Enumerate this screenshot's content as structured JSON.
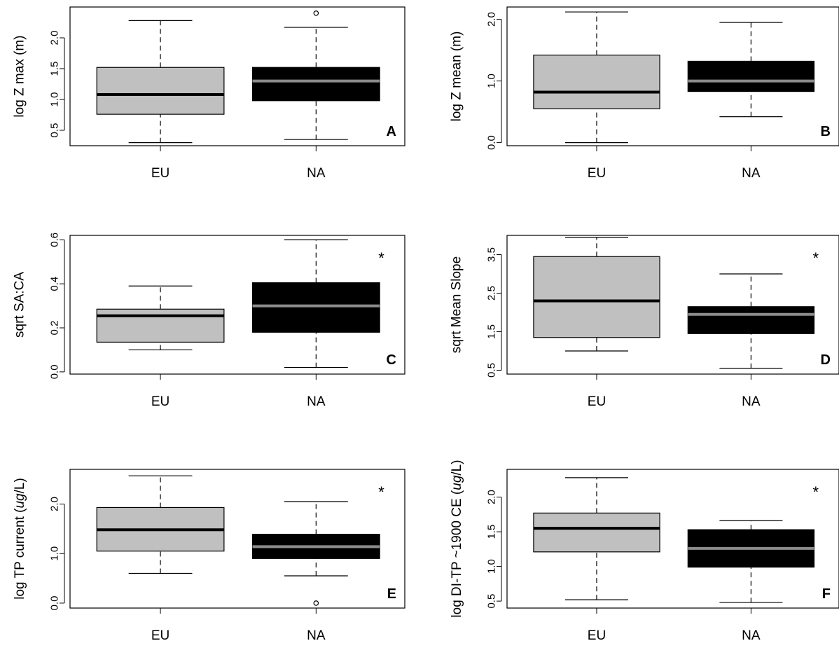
{
  "chart_data": [
    {
      "type": "box",
      "panel": "A",
      "ylabel": "log Z max (m)",
      "ylim": [
        0.25,
        2.5
      ],
      "yticks": [
        "0.5",
        "1.0",
        "1.5",
        "2.0"
      ],
      "categories": [
        "EU",
        "NA"
      ],
      "significance": "",
      "boxes": [
        {
          "min": 0.3,
          "q1": 0.76,
          "median": 1.08,
          "q3": 1.52,
          "max": 2.28,
          "outliers": []
        },
        {
          "min": 0.35,
          "q1": 0.98,
          "median": 1.3,
          "q3": 1.52,
          "max": 2.17,
          "outliers": [
            2.4
          ]
        }
      ]
    },
    {
      "type": "box",
      "panel": "B",
      "ylabel": "log Z mean (m)",
      "ylim": [
        -0.05,
        2.2
      ],
      "yticks": [
        "0.0",
        "1.0",
        "2.0"
      ],
      "categories": [
        "EU",
        "NA"
      ],
      "significance": "",
      "boxes": [
        {
          "min": 0.0,
          "q1": 0.55,
          "median": 0.82,
          "q3": 1.42,
          "max": 2.12,
          "outliers": []
        },
        {
          "min": 0.42,
          "q1": 0.83,
          "median": 1.0,
          "q3": 1.32,
          "max": 1.95,
          "outliers": []
        }
      ]
    },
    {
      "type": "box",
      "panel": "C",
      "ylabel": "sqrt SA:CA",
      "ylim": [
        -0.01,
        0.62
      ],
      "yticks": [
        "0.0",
        "0.2",
        "0.4",
        "0.6"
      ],
      "categories": [
        "EU",
        "NA"
      ],
      "significance": "*",
      "boxes": [
        {
          "min": 0.1,
          "q1": 0.135,
          "median": 0.255,
          "q3": 0.285,
          "max": 0.39,
          "outliers": []
        },
        {
          "min": 0.02,
          "q1": 0.18,
          "median": 0.3,
          "q3": 0.405,
          "max": 0.6,
          "outliers": []
        }
      ]
    },
    {
      "type": "box",
      "panel": "D",
      "ylabel": "sqrt Mean Slope",
      "ylim": [
        0.4,
        4.0
      ],
      "yticks": [
        "0.5",
        "1.5",
        "2.5",
        "3.5"
      ],
      "categories": [
        "EU",
        "NA"
      ],
      "significance": "*",
      "boxes": [
        {
          "min": 1.0,
          "q1": 1.35,
          "median": 2.3,
          "q3": 3.45,
          "max": 3.95,
          "outliers": []
        },
        {
          "min": 0.55,
          "q1": 1.45,
          "median": 1.95,
          "q3": 2.15,
          "max": 3.0,
          "outliers": []
        }
      ]
    },
    {
      "type": "box",
      "panel": "E",
      "ylabel": "log TP current (ug/L)",
      "ylabel_parts": [
        "log TP current (",
        "ug",
        "/L)"
      ],
      "ylim": [
        -0.1,
        2.7
      ],
      "yticks": [
        "0.0",
        "1.0",
        "2.0"
      ],
      "categories": [
        "EU",
        "NA"
      ],
      "significance": "*",
      "boxes": [
        {
          "min": 0.6,
          "q1": 1.05,
          "median": 1.48,
          "q3": 1.93,
          "max": 2.57,
          "outliers": []
        },
        {
          "min": 0.55,
          "q1": 0.9,
          "median": 1.14,
          "q3": 1.39,
          "max": 2.05,
          "outliers": [
            0.0
          ]
        }
      ]
    },
    {
      "type": "box",
      "panel": "F",
      "ylabel": "log DI-TP ~1900 CE (ug/L)",
      "ylabel_parts": [
        "log DI-TP ~1900 CE (",
        "ug",
        "/L)"
      ],
      "ylim": [
        0.4,
        2.4
      ],
      "yticks": [
        "0.5",
        "1.0",
        "1.5",
        "2.0"
      ],
      "categories": [
        "EU",
        "NA"
      ],
      "significance": "*",
      "boxes": [
        {
          "min": 0.52,
          "q1": 1.21,
          "median": 1.55,
          "q3": 1.77,
          "max": 2.28,
          "outliers": []
        },
        {
          "min": 0.48,
          "q1": 0.99,
          "median": 1.26,
          "q3": 1.53,
          "max": 1.66,
          "outliers": []
        }
      ]
    }
  ],
  "style": {
    "eu_fill": "#c0c0c0",
    "eu_median": "#000000",
    "na_fill": "#000000",
    "na_median": "#8c8c8c"
  }
}
